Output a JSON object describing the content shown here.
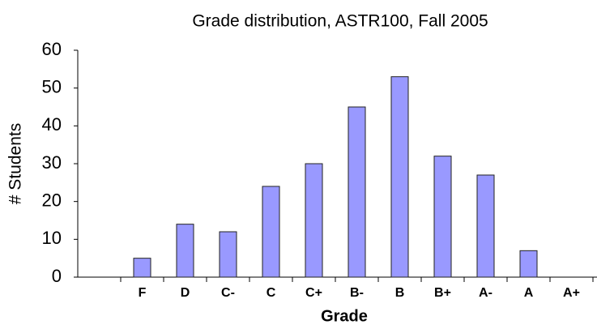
{
  "chart_data": {
    "type": "bar",
    "title": "Grade distribution, ASTR100, Fall 2005",
    "x_label": "Grade",
    "y_label": "# Students",
    "categories": [
      null,
      "F",
      "D",
      "C-",
      "C",
      "C+",
      "B-",
      "B",
      "B+",
      "A-",
      "A",
      "A+"
    ],
    "values": [
      null,
      5,
      14,
      12,
      24,
      30,
      45,
      53,
      32,
      27,
      7,
      0
    ],
    "color": "#9999ff",
    "ylim": [
      0,
      60
    ],
    "yticks": [
      0,
      10,
      20,
      30,
      40,
      50,
      60
    ],
    "grid": false
  }
}
